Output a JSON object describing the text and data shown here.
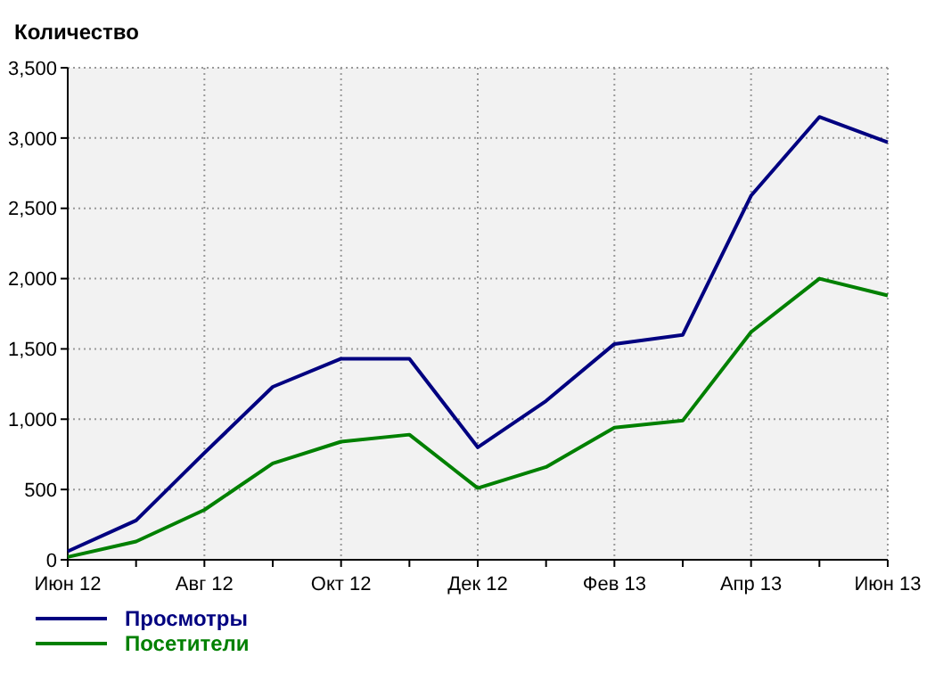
{
  "chart_data": {
    "type": "line",
    "ylabel": "Количество",
    "categories": [
      "Июн 12",
      null,
      "Авг 12",
      null,
      "Окт 12",
      null,
      "Дек 12",
      null,
      "Фев 13",
      null,
      "Апр 13",
      null,
      "Июн 13"
    ],
    "series": [
      {
        "name": "Просмотры",
        "color": "#000080",
        "values": [
          60,
          280,
          760,
          1230,
          1430,
          1430,
          800,
          1130,
          1535,
          1600,
          2590,
          3150,
          2970
        ]
      },
      {
        "name": "Посетители",
        "color": "#008000",
        "values": [
          20,
          130,
          355,
          685,
          840,
          890,
          510,
          660,
          940,
          990,
          1620,
          2000,
          1880
        ]
      }
    ],
    "ylim": [
      0,
      3500
    ],
    "yticks": [
      0,
      {
        "value": 500,
        "label": "500"
      },
      {
        "value": 1000,
        "label": "1,000"
      },
      {
        "value": 1500,
        "label": "1,500"
      },
      {
        "value": 2000,
        "label": "2,000"
      },
      {
        "value": 2500,
        "label": "2,500"
      },
      {
        "value": 3000,
        "label": "3,000"
      },
      {
        "value": 3500,
        "label": "3,500"
      }
    ],
    "grid": true,
    "legend": "bottom left",
    "marker": "none",
    "line_style": "solid"
  }
}
